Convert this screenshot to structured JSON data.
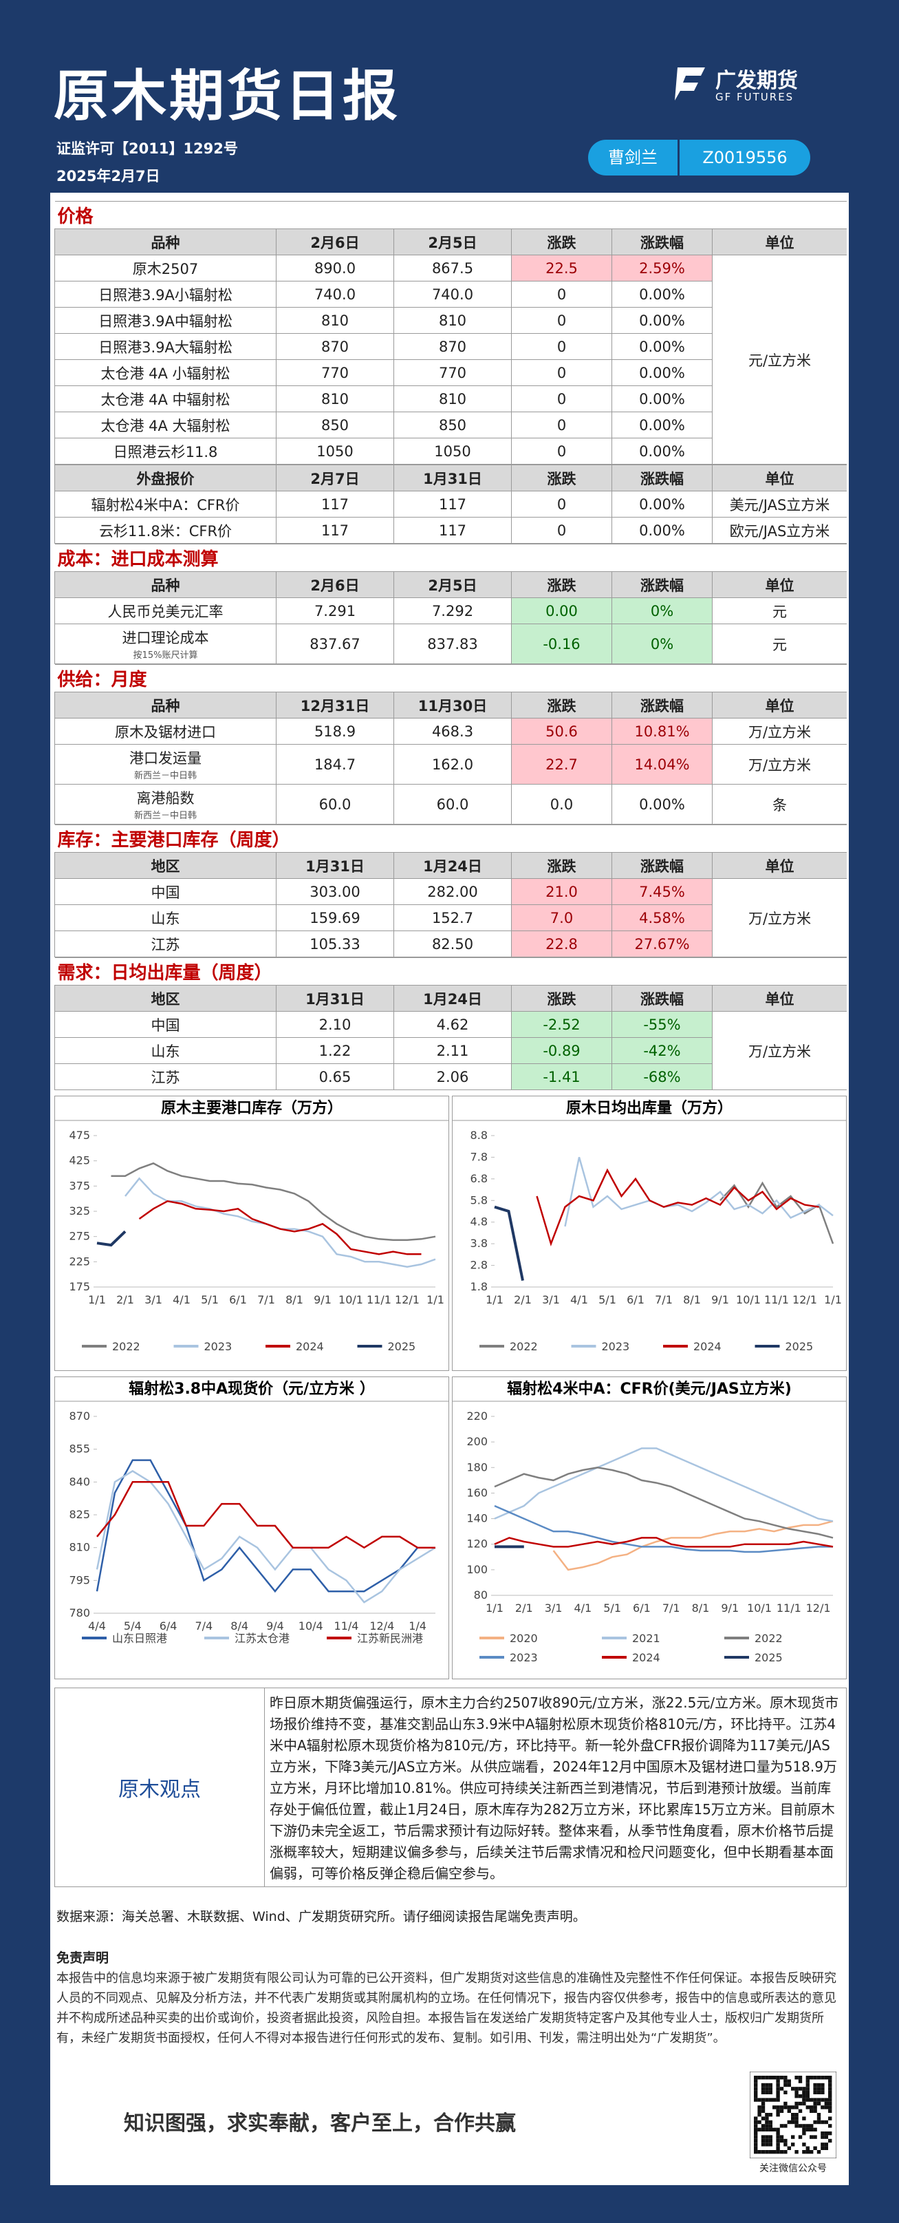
{
  "header": {
    "title": "原木期货日报",
    "license": "证监许可【2011】1292号",
    "date": "2025年2月7日",
    "logo": "广发期货",
    "logo_en": "GF FUTURES",
    "analyst": "曹剑兰",
    "analyst_id": "Z0019556"
  },
  "tables": [
    {
      "title": "价格",
      "header": [
        "品种",
        "2月6日",
        "2月5日",
        "涨跌",
        "涨跌幅",
        "单位"
      ],
      "unit": "元/立方米",
      "rows": [
        {
          "cells": [
            "原木2507",
            "890.0",
            "867.5",
            "22.5",
            "2.59%"
          ],
          "tone": "up"
        },
        {
          "cells": [
            "日照港3.9A小辐射松",
            "740.0",
            "740.0",
            "0",
            "0.00%"
          ]
        },
        {
          "cells": [
            "日照港3.9A中辐射松",
            "810",
            "810",
            "0",
            "0.00%"
          ]
        },
        {
          "cells": [
            "日照港3.9A大辐射松",
            "870",
            "870",
            "0",
            "0.00%"
          ]
        },
        {
          "cells": [
            "太仓港 4A 小辐射松",
            "770",
            "770",
            "0",
            "0.00%"
          ]
        },
        {
          "cells": [
            "太仓港 4A 中辐射松",
            "810",
            "810",
            "0",
            "0.00%"
          ]
        },
        {
          "cells": [
            "太仓港 4A 大辐射松",
            "850",
            "850",
            "0",
            "0.00%"
          ]
        },
        {
          "cells": [
            "日照港云杉11.8",
            "1050",
            "1050",
            "0",
            "0.00%"
          ]
        }
      ]
    },
    {
      "header": [
        "外盘报价",
        "2月7日",
        "1月31日",
        "涨跌",
        "涨跌幅",
        "单位"
      ],
      "rows": [
        {
          "cells": [
            "辐射松4米中A：CFR价",
            "117",
            "117",
            "0",
            "0.00%"
          ],
          "unit": "美元/JAS立方米"
        },
        {
          "cells": [
            "云杉11.8米：CFR价",
            "117",
            "117",
            "0",
            "0.00%"
          ],
          "unit": "欧元/JAS立方米"
        }
      ]
    },
    {
      "title": "成本：进口成本测算",
      "header": [
        "品种",
        "2月6日",
        "2月5日",
        "涨跌",
        "涨跌幅",
        "单位"
      ],
      "rows": [
        {
          "cells": [
            "人民币兑美元汇率",
            "7.291",
            "7.292",
            "0.00",
            "0%"
          ],
          "unit": "元",
          "tone": "down"
        },
        {
          "cells": [
            "进口理论成本",
            "837.67",
            "837.83",
            "-0.16",
            "0%"
          ],
          "note": "按15%账尺计算",
          "unit": "元",
          "tone": "down"
        }
      ]
    },
    {
      "title": "供给：月度",
      "header": [
        "品种",
        "12月31日",
        "11月30日",
        "涨跌",
        "涨跌幅",
        "单位"
      ],
      "rows": [
        {
          "cells": [
            "原木及锯材进口",
            "518.9",
            "468.3",
            "50.6",
            "10.81%"
          ],
          "unit": "万/立方米",
          "tone": "up"
        },
        {
          "cells": [
            "港口发运量",
            "184.7",
            "162.0",
            "22.7",
            "14.04%"
          ],
          "note": "新西兰－中日韩",
          "unit": "万/立方米",
          "tone": "up"
        },
        {
          "cells": [
            "离港船数",
            "60.0",
            "60.0",
            "0.0",
            "0.00%"
          ],
          "note": "新西兰－中日韩",
          "unit": "条"
        }
      ]
    },
    {
      "title": "库存：主要港口库存（周度）",
      "header": [
        "地区",
        "1月31日",
        "1月24日",
        "涨跌",
        "涨跌幅",
        "单位"
      ],
      "unit": "万/立方米",
      "rows": [
        {
          "cells": [
            "中国",
            "303.00",
            "282.00",
            "21.0",
            "7.45%"
          ],
          "tone": "up"
        },
        {
          "cells": [
            "山东",
            "159.69",
            "152.7",
            "7.0",
            "4.58%"
          ],
          "tone": "up"
        },
        {
          "cells": [
            "江苏",
            "105.33",
            "82.50",
            "22.8",
            "27.67%"
          ],
          "tone": "up"
        }
      ]
    },
    {
      "title": "需求：日均出库量（周度）",
      "header": [
        "地区",
        "1月31日",
        "1月24日",
        "涨跌",
        "涨跌幅",
        "单位"
      ],
      "unit": "万/立方米",
      "rows": [
        {
          "cells": [
            "中国",
            "2.10",
            "4.62",
            "-2.52",
            "-55%"
          ],
          "tone": "down"
        },
        {
          "cells": [
            "山东",
            "1.22",
            "2.11",
            "-0.89",
            "-42%"
          ],
          "tone": "down"
        },
        {
          "cells": [
            "江苏",
            "0.65",
            "2.06",
            "-1.41",
            "-68%"
          ],
          "tone": "down"
        }
      ]
    }
  ],
  "chart_data": [
    {
      "type": "line",
      "title": "原木主要港口库存（万方）",
      "categories": [
        "1/1",
        null,
        "2/1",
        null,
        "3/1",
        null,
        "4/1",
        null,
        "5/1",
        null,
        "6/1",
        null,
        "7/1",
        null,
        "8/1",
        null,
        "9/1",
        null,
        "10/1",
        null,
        "11/1",
        null,
        "12/1",
        null,
        "1/1"
      ],
      "ylim": [
        175,
        475
      ],
      "yticks": [
        175,
        225,
        275,
        325,
        375,
        425,
        475
      ],
      "legend": "bottom",
      "series": [
        {
          "name": "2022",
          "color": "#7f7f7f",
          "values": [
            null,
            395,
            395,
            410,
            420,
            405,
            395,
            390,
            385,
            385,
            380,
            378,
            372,
            368,
            360,
            345,
            320,
            300,
            285,
            275,
            270,
            268,
            268,
            270,
            275
          ]
        },
        {
          "name": "2023",
          "color": "#a9c4e0",
          "values": [
            null,
            null,
            355,
            390,
            360,
            345,
            345,
            335,
            330,
            320,
            315,
            305,
            300,
            290,
            290,
            285,
            275,
            240,
            235,
            225,
            225,
            220,
            215,
            220,
            230
          ]
        },
        {
          "name": "2024",
          "color": "#c00000",
          "values": [
            null,
            null,
            null,
            310,
            330,
            345,
            340,
            330,
            328,
            325,
            330,
            310,
            300,
            290,
            285,
            290,
            300,
            280,
            250,
            245,
            240,
            245,
            240,
            240,
            null
          ]
        },
        {
          "name": "2025",
          "color": "#1f3864",
          "values": [
            262,
            258,
            285,
            null,
            null,
            null,
            null,
            null,
            null,
            null,
            null,
            null,
            null,
            null,
            null,
            null,
            null,
            null,
            null,
            null,
            null,
            null,
            null,
            null,
            null
          ]
        }
      ]
    },
    {
      "type": "line",
      "title": "原木日均出库量（万方）",
      "categories": [
        "1/1",
        null,
        "2/1",
        null,
        "3/1",
        null,
        "4/1",
        null,
        "5/1",
        null,
        "6/1",
        null,
        "7/1",
        null,
        "8/1",
        null,
        "9/1",
        null,
        "10/1",
        null,
        "11/1",
        null,
        "12/1",
        null,
        "1/1"
      ],
      "ylim": [
        1.8,
        8.8
      ],
      "yticks": [
        1.8,
        2.8,
        3.8,
        4.8,
        5.8,
        6.8,
        7.8,
        8.8
      ],
      "legend": "bottom",
      "series": [
        {
          "name": "2022",
          "color": "#7f7f7f",
          "values": [
            null,
            null,
            null,
            null,
            null,
            null,
            null,
            null,
            null,
            null,
            null,
            null,
            null,
            null,
            null,
            null,
            5.8,
            6.5,
            5.5,
            6.6,
            5.5,
            6.0,
            5.2,
            5.6,
            3.8
          ]
        },
        {
          "name": "2023",
          "color": "#a9c4e0",
          "values": [
            null,
            null,
            null,
            null,
            null,
            4.6,
            7.8,
            5.5,
            6.0,
            5.4,
            5.6,
            5.8,
            5.5,
            5.6,
            5.3,
            5.7,
            6.2,
            5.4,
            5.6,
            5.2,
            5.8,
            5.0,
            5.3,
            5.6,
            5.1
          ]
        },
        {
          "name": "2024",
          "color": "#c00000",
          "values": [
            null,
            null,
            null,
            6.0,
            3.8,
            5.5,
            6.0,
            5.8,
            7.2,
            6.0,
            6.8,
            5.8,
            5.5,
            5.7,
            5.6,
            5.9,
            5.6,
            6.4,
            5.8,
            6.2,
            5.4,
            5.9,
            5.6,
            5.5,
            null
          ]
        },
        {
          "name": "2025",
          "color": "#1f3864",
          "values": [
            5.5,
            5.3,
            2.1,
            null,
            null,
            null,
            null,
            null,
            null,
            null,
            null,
            null,
            null,
            null,
            null,
            null,
            null,
            null,
            null,
            null,
            null,
            null,
            null,
            null,
            null
          ]
        }
      ]
    },
    {
      "type": "line",
      "title": "辐射松3.8中A现货价（元/立方米 ）",
      "categories": [
        "4/4",
        null,
        "5/4",
        null,
        "6/4",
        null,
        "7/4",
        null,
        "8/4",
        null,
        "9/4",
        null,
        "10/4",
        null,
        "11/4",
        null,
        "12/4",
        null,
        "1/4",
        null
      ],
      "ylim": [
        780,
        870
      ],
      "yticks": [
        780,
        795,
        810,
        825,
        840,
        855,
        870
      ],
      "legend": "bottom",
      "series": [
        {
          "name": "山东日照港",
          "color": "#2e5fa8",
          "values": [
            790,
            835,
            850,
            850,
            835,
            820,
            795,
            800,
            810,
            800,
            790,
            800,
            800,
            790,
            790,
            790,
            795,
            800,
            810,
            810
          ]
        },
        {
          "name": "江苏太仓港",
          "color": "#a9c4e0",
          "values": [
            800,
            840,
            845,
            840,
            830,
            815,
            800,
            805,
            815,
            810,
            800,
            810,
            810,
            800,
            795,
            785,
            790,
            800,
            805,
            810
          ]
        },
        {
          "name": "江苏新民洲港",
          "color": "#c00000",
          "values": [
            815,
            825,
            840,
            840,
            840,
            820,
            820,
            830,
            830,
            820,
            820,
            810,
            810,
            810,
            815,
            810,
            815,
            815,
            810,
            810
          ]
        }
      ]
    },
    {
      "type": "line",
      "title": "辐射松4米中A：CFR价(美元/JAS立方米)",
      "categories": [
        "1/1",
        null,
        "2/1",
        null,
        "3/1",
        null,
        "4/1",
        null,
        "5/1",
        null,
        "6/1",
        null,
        "7/1",
        null,
        "8/1",
        null,
        "9/1",
        null,
        "10/1",
        null,
        "11/1",
        null,
        "12/1",
        null
      ],
      "ylim": [
        80,
        220
      ],
      "yticks": [
        80,
        100,
        120,
        140,
        160,
        180,
        200,
        220
      ],
      "legend": "bottom",
      "series": [
        {
          "name": "2020",
          "color": "#f4b183",
          "values": [
            null,
            null,
            null,
            null,
            115,
            100,
            102,
            105,
            110,
            112,
            118,
            122,
            125,
            125,
            125,
            128,
            130,
            130,
            132,
            130,
            133,
            135,
            135,
            138
          ]
        },
        {
          "name": "2021",
          "color": "#a9c4e0",
          "values": [
            140,
            145,
            150,
            160,
            165,
            170,
            175,
            180,
            185,
            190,
            195,
            195,
            190,
            185,
            180,
            175,
            170,
            165,
            160,
            155,
            150,
            145,
            140,
            138
          ]
        },
        {
          "name": "2022",
          "color": "#7f7f7f",
          "values": [
            165,
            170,
            175,
            172,
            170,
            175,
            178,
            180,
            178,
            175,
            170,
            168,
            165,
            160,
            155,
            150,
            145,
            140,
            138,
            135,
            132,
            130,
            128,
            125
          ]
        },
        {
          "name": "2023",
          "color": "#5b8bc4",
          "values": [
            150,
            145,
            140,
            135,
            130,
            130,
            128,
            125,
            122,
            120,
            118,
            118,
            118,
            116,
            115,
            115,
            115,
            114,
            114,
            115,
            116,
            117,
            118,
            118
          ]
        },
        {
          "name": "2024",
          "color": "#c00000",
          "values": [
            120,
            125,
            122,
            120,
            118,
            118,
            120,
            122,
            120,
            122,
            125,
            125,
            120,
            118,
            118,
            118,
            118,
            120,
            120,
            120,
            120,
            122,
            120,
            118
          ]
        },
        {
          "name": "2025",
          "color": "#1f3864",
          "values": [
            118,
            118,
            118,
            null,
            null,
            null,
            null,
            null,
            null,
            null,
            null,
            null,
            null,
            null,
            null,
            null,
            null,
            null,
            null,
            null,
            null,
            null,
            null,
            null
          ]
        }
      ]
    }
  ],
  "view": {
    "label": "原木观点",
    "text": "昨日原木期货偏强运行，原木主力合约2507收890元/立方米，涨22.5元/立方米。原木现货市场报价维持不变，基准交割品山东3.9米中A辐射松原木现货价格810元/方，环比持平。江苏4米中A辐射松原木现货价格为810元/方，环比持平。新一轮外盘CFR报价调降为117美元/JAS立方米，下降3美元/JAS立方米。从供应端看，2024年12月中国原木及锯材进口量为518.9万立方米，月环比增加10.81%。供应可持续关注新西兰到港情况，节后到港预计放缓。当前库存处于偏低位置，截止1月24日，原木库存为282万立方米，环比累库15万立方米。目前原木下游仍未完全返工，节后需求预计有边际好转。整体来看，从季节性角度看，原木价格节后提涨概率较大，短期建议偏多参与，后续关注节后需求情况和检尺问题变化，但中长期看基本面偏弱，可等价格反弹企稳后偏空参与。"
  },
  "footer": {
    "source": "数据来源：海关总署、木联数据、Wind、广发期货研究所。请仔细阅读报告尾端免责声明。",
    "disclaimer_title": "免责声明",
    "disclaimer": "本报告中的信息均来源于被广发期货有限公司认为可靠的已公开资料，但广发期货对这些信息的准确性及完整性不作任何保证。本报告反映研究人员的不同观点、见解及分析方法，并不代表广发期货或其附属机构的立场。在任何情况下，报告内容仅供参考，报告中的信息或所表达的意见并不构成所述品种买卖的出价或询价，投资者据此投资，风险自担。本报告旨在发送给广发期货特定客户及其他专业人士，版权归广发期货所有，未经广发期货书面授权，任何人不得对本报告进行任何形式的发布、复制。如引用、刊发，需注明出处为“广发期货”。",
    "slogan": "知识图强，求实奉献，客户至上，合作共赢",
    "qr_caption": "关注微信公众号"
  }
}
